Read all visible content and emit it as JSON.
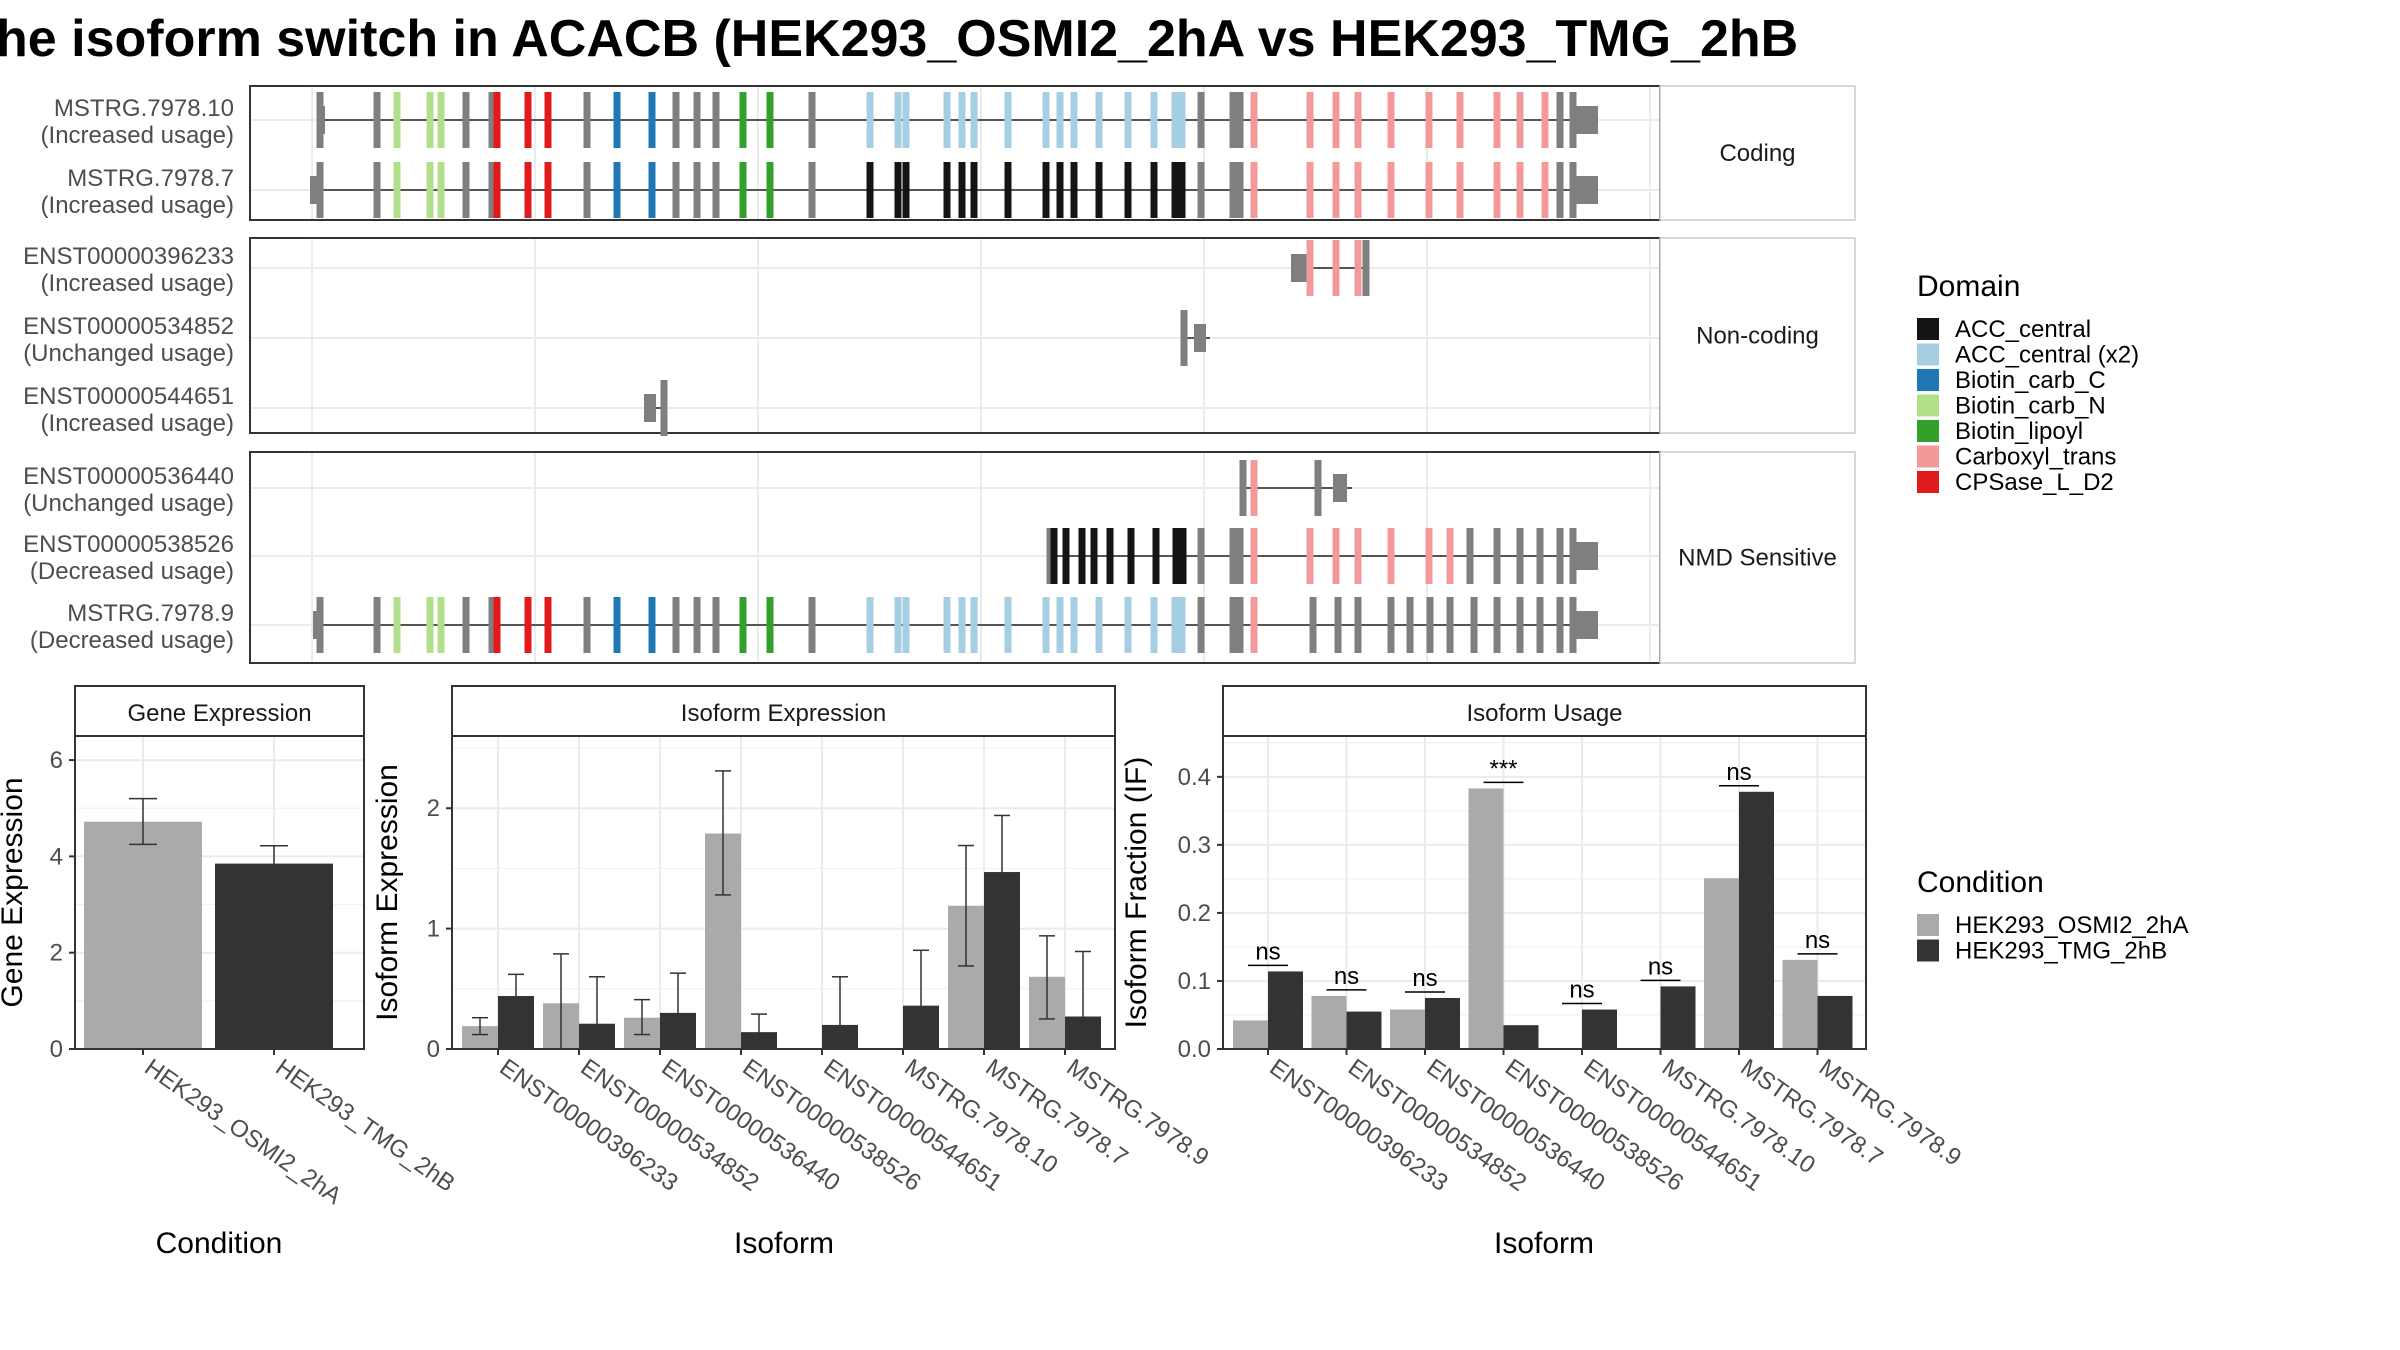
{
  "title": "he isoform switch in ACACB (HEK293_OSMI2_2hA vs HEK293_TMG_2hB",
  "domain_legend": {
    "title": "Domain",
    "items": [
      {
        "name": "ACC_central",
        "color": "#141414"
      },
      {
        "name": "ACC_central (x2)",
        "color": "#a6cee3"
      },
      {
        "name": "Biotin_carb_C",
        "color": "#1f78b4"
      },
      {
        "name": "Biotin_carb_N",
        "color": "#b2df8a"
      },
      {
        "name": "Biotin_lipoyl",
        "color": "#33a02c"
      },
      {
        "name": "Carboxyl_trans",
        "color": "#f4999a"
      },
      {
        "name": "CPSase_L_D2",
        "color": "#e31a1c"
      }
    ]
  },
  "condition_legend": {
    "title": "Condition",
    "items": [
      {
        "name": "HEK293_OSMI2_2hA",
        "color": "#aaaaaa"
      },
      {
        "name": "HEK293_TMG_2hB",
        "color": "#333333"
      }
    ]
  },
  "structure": {
    "groups": [
      {
        "label": "Coding",
        "isoforms": [
          {
            "name": "MSTRG.7978.10",
            "usage": "(Increased usage)"
          },
          {
            "name": "MSTRG.7978.7",
            "usage": "(Increased usage)"
          }
        ]
      },
      {
        "label": "Non-coding",
        "isoforms": [
          {
            "name": "ENST00000396233",
            "usage": "(Increased usage)"
          },
          {
            "name": "ENST00000534852",
            "usage": "(Unchanged usage)"
          },
          {
            "name": "ENST00000544651",
            "usage": "(Increased usage)"
          }
        ]
      },
      {
        "label": "NMD Sensitive",
        "isoforms": [
          {
            "name": "ENST00000536440",
            "usage": "(Unchanged usage)"
          },
          {
            "name": "ENST00000538526",
            "usage": "(Decreased usage)"
          },
          {
            "name": "MSTRG.7978.9",
            "usage": "(Decreased usage)"
          }
        ]
      }
    ]
  },
  "chart_data": [
    {
      "type": "bar",
      "title": "Gene Expression",
      "xlabel": "Condition",
      "ylabel": "Gene Expression",
      "ylim": [
        0,
        6.5
      ],
      "yticks": [
        0,
        2,
        4,
        6
      ],
      "categories": [
        "HEK293_OSMI2_2hA",
        "HEK293_TMG_2hB"
      ],
      "series": [
        {
          "name": "HEK293_OSMI2_2hA",
          "values": [
            4.72,
            null
          ],
          "err_low": [
            4.25,
            null
          ],
          "err_high": [
            5.2,
            null
          ]
        },
        {
          "name": "HEK293_TMG_2hB",
          "values": [
            null,
            3.85
          ],
          "err_low": [
            null,
            3.5
          ],
          "err_high": [
            null,
            4.22
          ]
        }
      ]
    },
    {
      "type": "bar",
      "title": "Isoform Expression",
      "xlabel": "Isoform",
      "ylabel": "Isoform Expression",
      "ylim": [
        0,
        2.6
      ],
      "yticks": [
        0,
        1,
        2
      ],
      "categories": [
        "ENST00000396233",
        "ENST00000534852",
        "ENST00000536440",
        "ENST00000538526",
        "ENST00000544651",
        "MSTRG.7978.10",
        "MSTRG.7978.7",
        "MSTRG.7978.9"
      ],
      "series": [
        {
          "name": "HEK293_OSMI2_2hA",
          "values": [
            0.19,
            0.38,
            0.26,
            1.79,
            0.0,
            0.0,
            1.19,
            0.6
          ],
          "err_low": [
            0.12,
            0.0,
            0.12,
            1.28,
            0.0,
            0.0,
            0.69,
            0.25
          ],
          "err_high": [
            0.26,
            0.79,
            0.41,
            2.31,
            0.0,
            0.0,
            1.69,
            0.94
          ]
        },
        {
          "name": "HEK293_TMG_2hB",
          "values": [
            0.44,
            0.21,
            0.3,
            0.14,
            0.2,
            0.36,
            1.47,
            0.27
          ],
          "err_low": [
            0.26,
            0.0,
            0.0,
            0.0,
            0.0,
            0.0,
            0.99,
            0.0
          ],
          "err_high": [
            0.62,
            0.6,
            0.63,
            0.29,
            0.6,
            0.82,
            1.94,
            0.81
          ]
        }
      ]
    },
    {
      "type": "bar",
      "title": "Isoform Usage",
      "xlabel": "Isoform",
      "ylabel": "Isoform Fraction (IF)",
      "ylim": [
        0,
        0.46
      ],
      "yticks": [
        0.0,
        0.1,
        0.2,
        0.3,
        0.4
      ],
      "categories": [
        "ENST00000396233",
        "ENST00000534852",
        "ENST00000536440",
        "ENST00000538526",
        "ENST00000544651",
        "MSTRG.7978.10",
        "MSTRG.7978.7",
        "MSTRG.7978.9"
      ],
      "series": [
        {
          "name": "HEK293_OSMI2_2hA",
          "values": [
            0.042,
            0.078,
            0.058,
            0.383,
            0.0,
            0.0,
            0.251,
            0.131
          ]
        },
        {
          "name": "HEK293_TMG_2hB",
          "values": [
            0.114,
            0.055,
            0.075,
            0.035,
            0.058,
            0.092,
            0.378,
            0.078
          ]
        }
      ],
      "significance": [
        "ns",
        "ns",
        "ns",
        "***",
        "ns",
        "ns",
        "ns",
        "ns"
      ]
    }
  ]
}
